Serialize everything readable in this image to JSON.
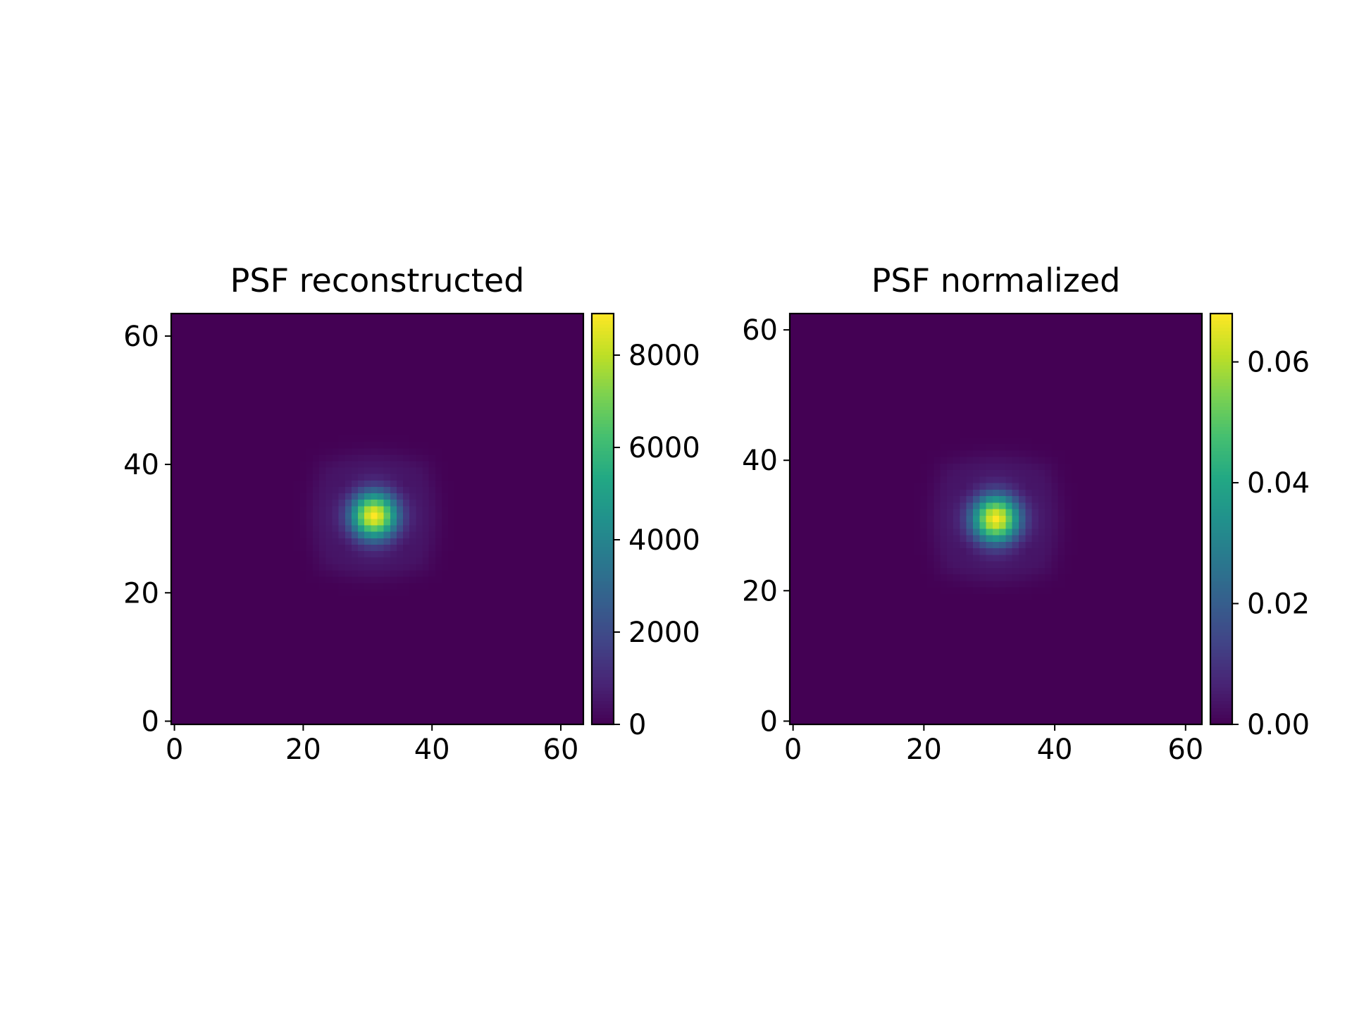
{
  "figure": {
    "background": "#ffffff",
    "colormap": "viridis"
  },
  "chart_data": [
    {
      "type": "heatmap",
      "title": "PSF reconstructed",
      "xlabel": "",
      "ylabel": "",
      "grid_size": 64,
      "xlim": [
        -0.5,
        63.5
      ],
      "ylim": [
        63.5,
        -0.5
      ],
      "x_ticks": [
        0,
        20,
        40,
        60
      ],
      "x_tick_labels": [
        "0",
        "20",
        "40",
        "60"
      ],
      "y_ticks": [
        0,
        20,
        40,
        60
      ],
      "y_tick_labels": [
        "0",
        "20",
        "40",
        "60"
      ],
      "peak_position": [
        31,
        31
      ],
      "peak_value": 8900,
      "core_sigma": 2.6,
      "ring": {
        "radius": 7.8,
        "width": 1.8,
        "relative_amplitude": 0.05
      },
      "colorbar": {
        "range": [
          0,
          8900
        ],
        "ticks": [
          0,
          2000,
          4000,
          6000,
          8000
        ],
        "tick_labels": [
          "0",
          "2000",
          "4000",
          "6000",
          "8000"
        ]
      },
      "grid": false
    },
    {
      "type": "heatmap",
      "title": "PSF normalized",
      "xlabel": "",
      "ylabel": "",
      "grid_size": 63,
      "xlim": [
        -0.5,
        62.5
      ],
      "ylim": [
        62.5,
        -0.5
      ],
      "x_ticks": [
        0,
        20,
        40,
        60
      ],
      "x_tick_labels": [
        "0",
        "20",
        "40",
        "60"
      ],
      "y_ticks": [
        0,
        20,
        40,
        60
      ],
      "y_tick_labels": [
        "0",
        "20",
        "40",
        "60"
      ],
      "peak_position": [
        31,
        31
      ],
      "peak_value": 0.068,
      "core_sigma": 2.6,
      "ring": {
        "radius": 7.8,
        "width": 1.8,
        "relative_amplitude": 0.05
      },
      "colorbar": {
        "range": [
          0,
          0.068
        ],
        "ticks": [
          0.0,
          0.02,
          0.04,
          0.06
        ],
        "tick_labels": [
          "0.00",
          "0.02",
          "0.04",
          "0.06"
        ]
      },
      "grid": false
    }
  ]
}
